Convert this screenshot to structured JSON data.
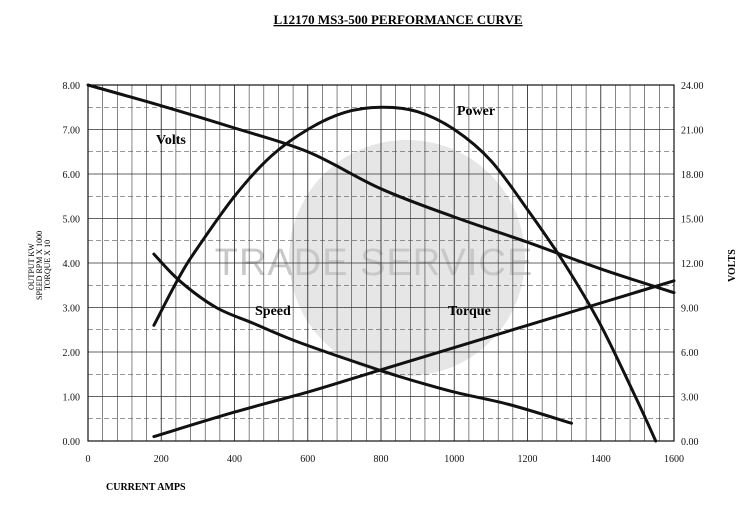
{
  "chart_data": {
    "type": "line",
    "title": "L12170 MS3-500 PERFORMANCE CURVE",
    "xlabel": "CURRENT AMPS",
    "ylabel_left": [
      "OUTPUT KW",
      "SPEED RPM X 1000",
      "TORQUE X 10"
    ],
    "ylabel_right": "VOLTS",
    "xlim": [
      0,
      1600
    ],
    "ylim_left": [
      0,
      8
    ],
    "ylim_right": [
      0,
      24
    ],
    "grid": true,
    "x_ticks": [
      "0",
      "200",
      "400",
      "600",
      "800",
      "1000",
      "1200",
      "1400",
      "1600"
    ],
    "y_left_ticks": [
      "0.00",
      "1.00",
      "2.00",
      "3.00",
      "4.00",
      "5.00",
      "6.00",
      "7.00",
      "8.00"
    ],
    "y_right_ticks": [
      "0.00",
      "3.00",
      "6.00",
      "9.00",
      "12.00",
      "15.00",
      "18.00",
      "21.00",
      "24.00"
    ],
    "watermark": "TRADE SERVICE",
    "series": [
      {
        "name": "Volts",
        "axis": "right",
        "x": [
          0,
          200,
          400,
          600,
          800,
          1000,
          1200,
          1400,
          1600
        ],
        "y": [
          24.0,
          22.6,
          21.1,
          19.5,
          17.0,
          15.1,
          13.4,
          11.6,
          10.0
        ]
      },
      {
        "name": "Power",
        "axis": "left",
        "x": [
          180,
          250,
          300,
          400,
          500,
          600,
          700,
          800,
          900,
          1000,
          1100,
          1200,
          1300,
          1400,
          1500,
          1550
        ],
        "y": [
          2.6,
          3.7,
          4.35,
          5.5,
          6.4,
          7.0,
          7.38,
          7.5,
          7.4,
          7.0,
          6.3,
          5.2,
          4.0,
          2.6,
          0.9,
          0.0
        ]
      },
      {
        "name": "Speed",
        "axis": "left",
        "x": [
          180,
          250,
          350,
          450,
          550,
          650,
          750,
          850,
          1000,
          1150,
          1320
        ],
        "y": [
          4.2,
          3.6,
          3.0,
          2.65,
          2.3,
          2.0,
          1.72,
          1.45,
          1.1,
          0.82,
          0.4
        ]
      },
      {
        "name": "Torque",
        "axis": "left",
        "x": [
          180,
          400,
          600,
          800,
          1000,
          1200,
          1400,
          1600
        ],
        "y": [
          0.1,
          0.65,
          1.1,
          1.6,
          2.1,
          2.6,
          3.1,
          3.6
        ]
      }
    ]
  }
}
